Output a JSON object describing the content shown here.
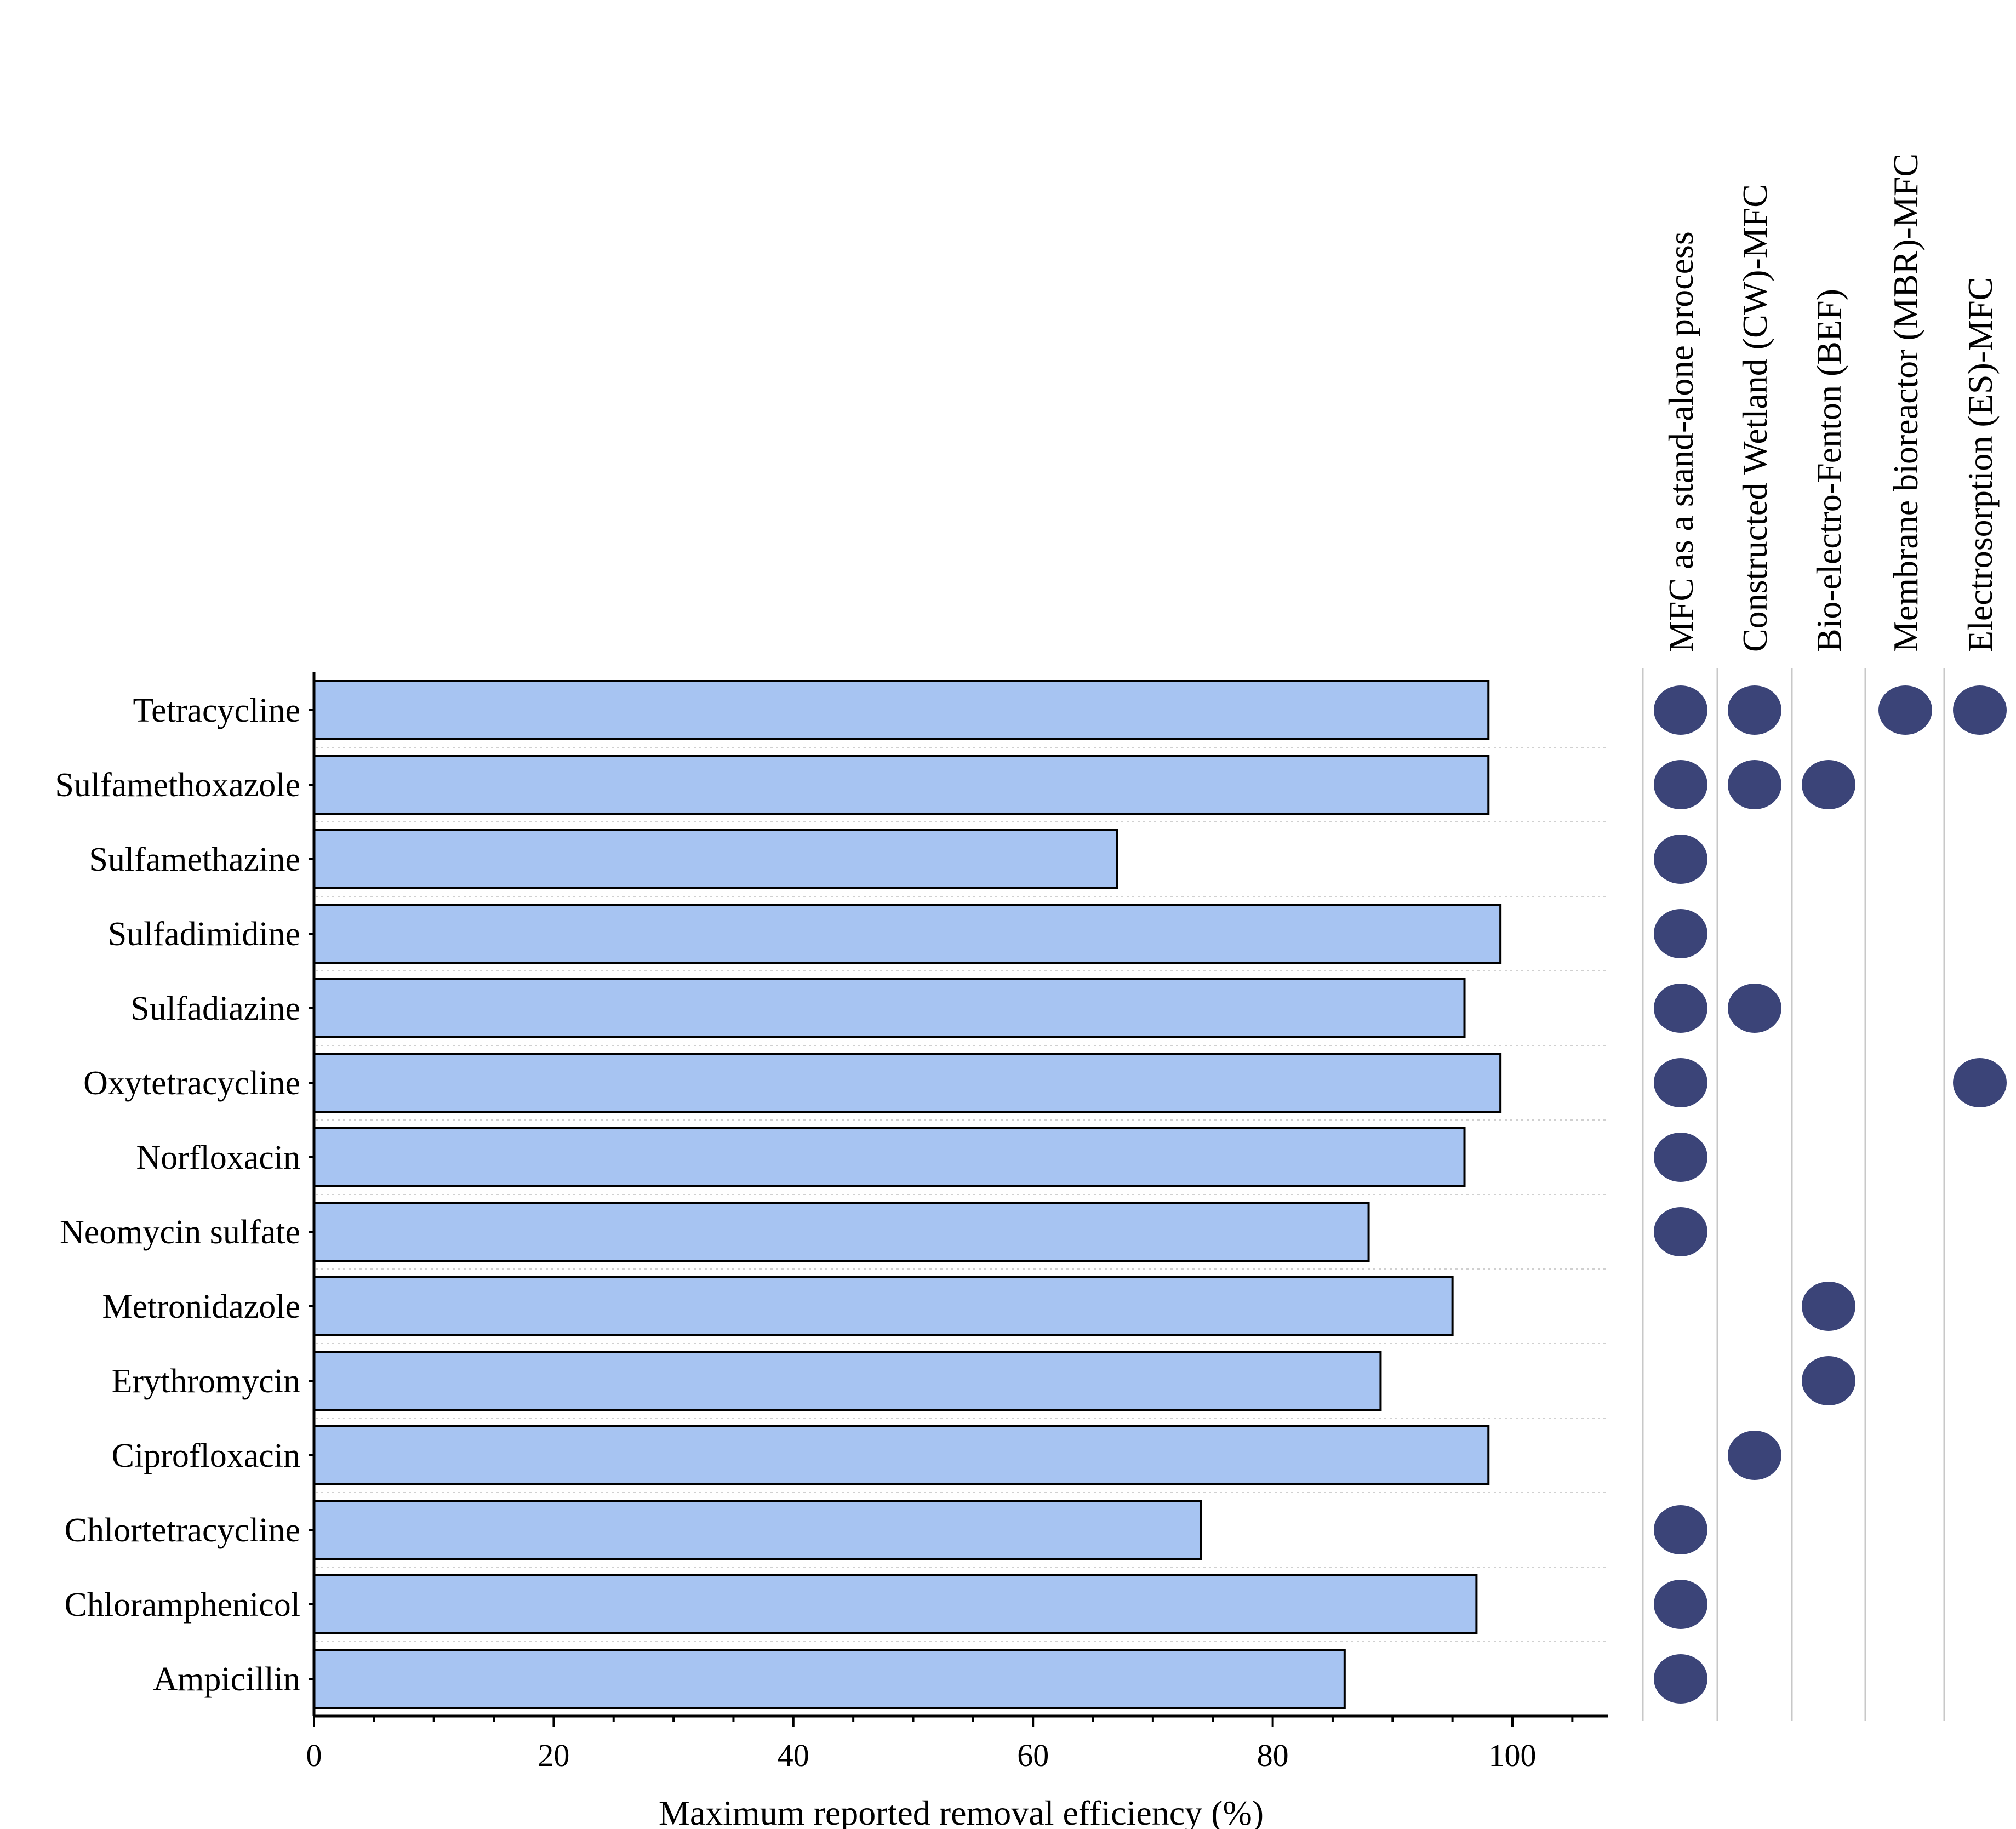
{
  "chart_data": {
    "type": "bar",
    "orientation": "horizontal",
    "xlabel": "Maximum reported removal efficiency (%)",
    "ylabel": "",
    "xlim": [
      0,
      108
    ],
    "xticks": [
      0,
      20,
      40,
      60,
      80,
      100
    ],
    "grid": "dotted horizontal separators",
    "categories": [
      "Tetracycline",
      "Sulfamethoxazole",
      "Sulfamethazine",
      "Sulfadimidine",
      "Sulfadiazine",
      "Oxytetracycline",
      "Norfloxacin",
      "Neomycin sulfate",
      "Metronidazole",
      "Erythromycin",
      "Ciprofloxacin",
      "Chlortetracycline",
      "Chloramphenicol",
      "Ampicillin"
    ],
    "values": [
      98,
      98,
      67,
      99,
      96,
      99,
      96,
      88,
      95,
      89,
      98,
      74,
      97,
      86
    ],
    "methods": [
      "MFC as a stand-alone process",
      "Constructed Wetland (CW)-MFC",
      "Bio-electro-Fenton (BEF)",
      "Membrane bioreactor (MBR)-MFC",
      "Electrosorption (ES)-MFC"
    ],
    "matrix": [
      [
        1,
        1,
        0,
        1,
        1
      ],
      [
        1,
        1,
        1,
        0,
        0
      ],
      [
        1,
        0,
        0,
        0,
        0
      ],
      [
        1,
        0,
        0,
        0,
        0
      ],
      [
        1,
        1,
        0,
        0,
        0
      ],
      [
        1,
        0,
        0,
        0,
        1
      ],
      [
        1,
        0,
        0,
        0,
        0
      ],
      [
        1,
        0,
        0,
        0,
        0
      ],
      [
        0,
        0,
        1,
        0,
        0
      ],
      [
        0,
        0,
        1,
        0,
        0
      ],
      [
        0,
        1,
        0,
        0,
        0
      ],
      [
        1,
        0,
        0,
        0,
        0
      ],
      [
        1,
        0,
        0,
        0,
        0
      ],
      [
        1,
        0,
        0,
        0,
        0
      ]
    ],
    "colors": {
      "bar_fill": "#a7c4f2",
      "bar_stroke": "#000000",
      "dot_fill": "#3b4478",
      "column_divider": "#c8c8c8",
      "row_separator": "#d0d0d0"
    }
  }
}
